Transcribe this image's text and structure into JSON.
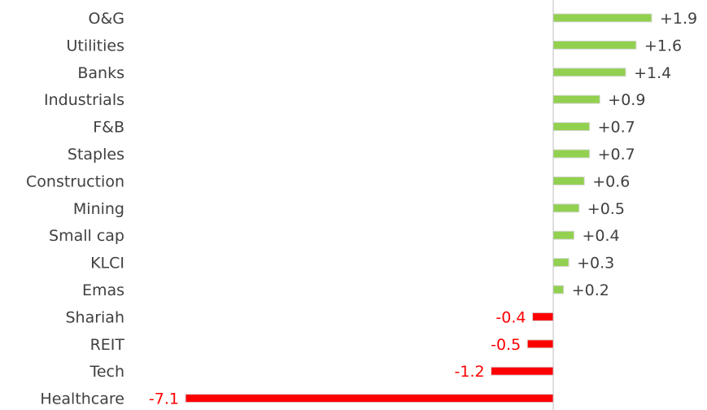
{
  "chart_data": {
    "type": "bar",
    "orientation": "horizontal",
    "categories": [
      "O&G",
      "Utilities",
      "Banks",
      "Industrials",
      "F&B",
      "Staples",
      "Construction",
      "Mining",
      "Small cap",
      "KLCI",
      "Emas",
      "Shariah",
      "REIT",
      "Tech",
      "Healthcare"
    ],
    "values": [
      1.9,
      1.6,
      1.4,
      0.9,
      0.7,
      0.7,
      0.6,
      0.5,
      0.4,
      0.3,
      0.2,
      -0.4,
      -0.5,
      -1.2,
      -7.1
    ],
    "value_labels": [
      "+1.9",
      "+1.6",
      "+1.4",
      "+0.9",
      "+0.7",
      "+0.7",
      "+0.6",
      "+0.5",
      "+0.4",
      "+0.3",
      "+0.2",
      "-0.4",
      "-0.5",
      "-1.2",
      "-7.1"
    ],
    "title": "",
    "xlabel": "",
    "ylabel": "",
    "xlim": [
      -7.1,
      2.0
    ],
    "grid": false,
    "legend": "none",
    "colors": {
      "positive": "#92d050",
      "negative": "#ff0000",
      "axis": "#bfbfbf",
      "category_text": "#404040",
      "positive_text": "#404040",
      "negative_text": "#ff0000"
    }
  }
}
